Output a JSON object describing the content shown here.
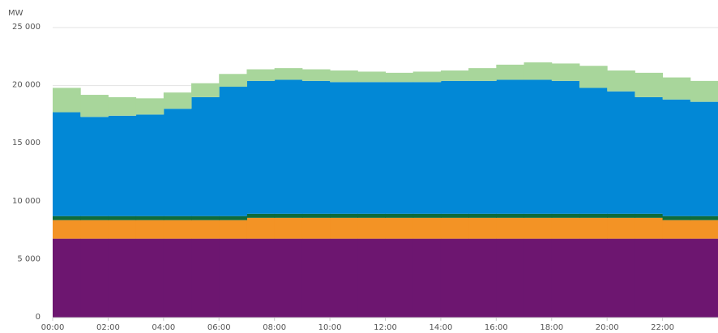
{
  "chart_data": {
    "type": "stacked-step-area",
    "y_axis_label": "MW",
    "x": [
      0,
      1,
      2,
      3,
      4,
      5,
      6,
      7,
      8,
      9,
      10,
      11,
      12,
      13,
      14,
      15,
      16,
      17,
      18,
      19,
      20,
      21,
      22,
      23
    ],
    "xlim": [
      0,
      24
    ],
    "xticks": [
      {
        "value": 0,
        "label": "00:00"
      },
      {
        "value": 2,
        "label": "02:00"
      },
      {
        "value": 4,
        "label": "04:00"
      },
      {
        "value": 6,
        "label": "06:00"
      },
      {
        "value": 8,
        "label": "08:00"
      },
      {
        "value": 10,
        "label": "10:00"
      },
      {
        "value": 12,
        "label": "12:00"
      },
      {
        "value": 14,
        "label": "14:00"
      },
      {
        "value": 16,
        "label": "16:00"
      },
      {
        "value": 18,
        "label": "18:00"
      },
      {
        "value": 20,
        "label": "20:00"
      },
      {
        "value": 22,
        "label": "22:00"
      }
    ],
    "ylim": [
      0,
      25000
    ],
    "yticks": [
      0,
      {
        "value": 5000,
        "label": "5 000"
      },
      {
        "value": 10000,
        "label": "10 000"
      },
      {
        "value": 15000,
        "label": "15 000"
      },
      {
        "value": 20000,
        "label": "20 000"
      },
      {
        "value": 25000,
        "label": "25 000"
      }
    ],
    "grid": true,
    "series": [
      {
        "color": "#6d1670",
        "values": [
          6800,
          6800,
          6800,
          6800,
          6800,
          6800,
          6800,
          6800,
          6800,
          6800,
          6800,
          6800,
          6800,
          6800,
          6800,
          6800,
          6800,
          6800,
          6800,
          6800,
          6800,
          6800,
          6800,
          6800
        ]
      },
      {
        "color": "#f39325",
        "values": [
          1600,
          1600,
          1600,
          1600,
          1600,
          1600,
          1600,
          1800,
          1800,
          1800,
          1800,
          1800,
          1800,
          1800,
          1800,
          1800,
          1800,
          1800,
          1800,
          1800,
          1800,
          1800,
          1600,
          1600
        ]
      },
      {
        "color": "#0f6b3a",
        "values": [
          350,
          350,
          350,
          350,
          350,
          350,
          350,
          350,
          350,
          350,
          350,
          350,
          350,
          350,
          350,
          350,
          350,
          350,
          350,
          350,
          350,
          350,
          350,
          350
        ]
      },
      {
        "color": "#0288d6",
        "values": [
          8950,
          8550,
          8650,
          8750,
          9250,
          10250,
          11150,
          11450,
          11550,
          11450,
          11350,
          11350,
          11350,
          11350,
          11450,
          11450,
          11550,
          11550,
          11450,
          10850,
          10550,
          10050,
          10050,
          9850
        ]
      },
      {
        "color": "#a8d69b",
        "values": [
          2100,
          1900,
          1600,
          1400,
          1400,
          1200,
          1100,
          1000,
          1000,
          1000,
          1000,
          900,
          800,
          900,
          900,
          1100,
          1300,
          1500,
          1500,
          1900,
          1800,
          2100,
          1900,
          1800
        ]
      }
    ]
  }
}
